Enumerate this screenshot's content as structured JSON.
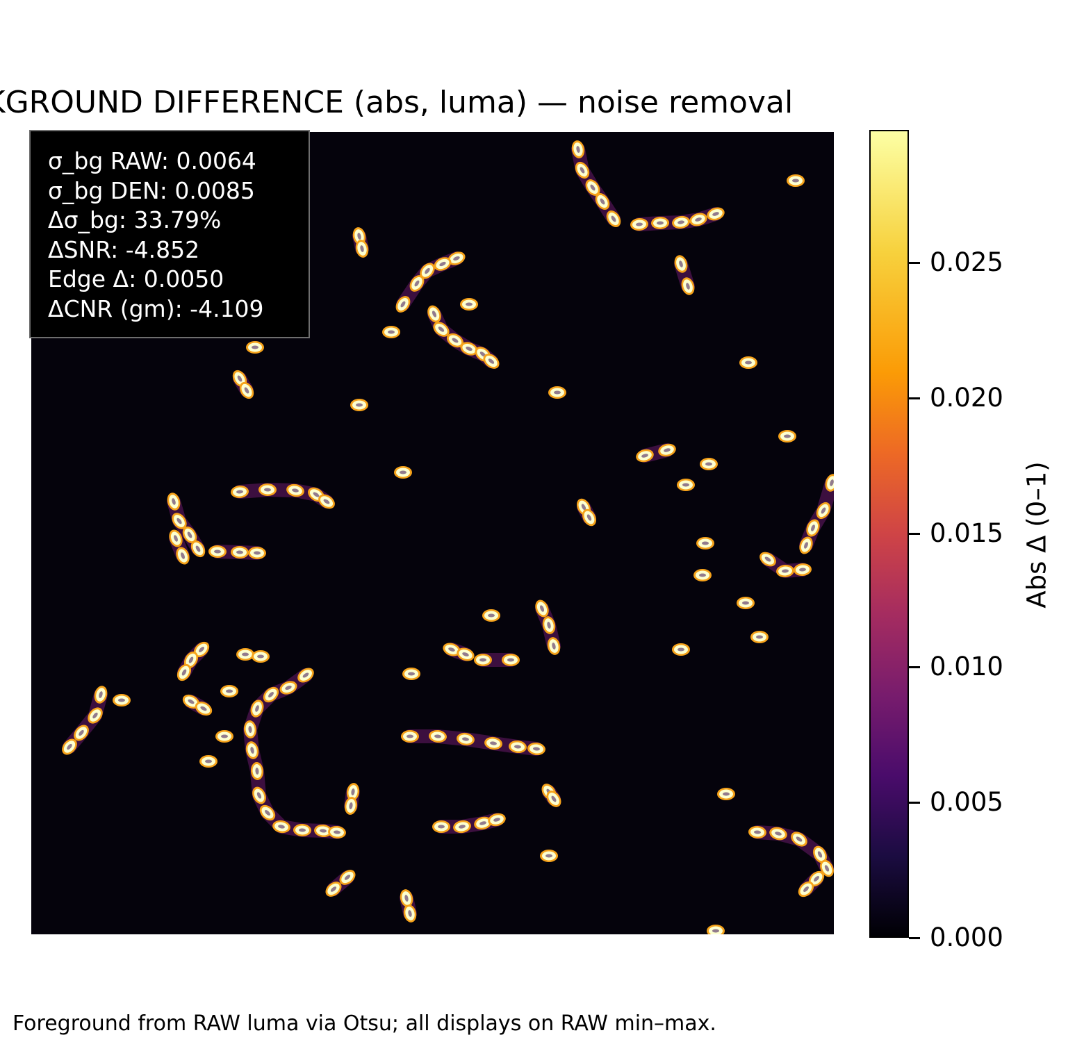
{
  "title": "CKGROUND DIFFERENCE (abs, luma) — noise removal",
  "stats": [
    "σ_bg RAW: 0.0064",
    "σ_bg DEN: 0.0085",
    "Δσ_bg: 33.79%",
    "ΔSNR: -4.852",
    "Edge Δ: 0.0050",
    "ΔCNR (gm): -4.109"
  ],
  "colorbar": {
    "label": "Abs Δ (0–1)",
    "colormap": "inferno",
    "min": 0.0,
    "max": 0.0298,
    "ticks": [
      "0.000",
      "0.005",
      "0.010",
      "0.015",
      "0.020",
      "0.025"
    ],
    "colors": [
      "#000004",
      "#4a0c6b",
      "#a52c60",
      "#ed6925",
      "#fb9b06",
      "#fcffa4"
    ]
  },
  "caption": "Foreground from RAW luma via Otsu; all displays on RAW min–max."
}
